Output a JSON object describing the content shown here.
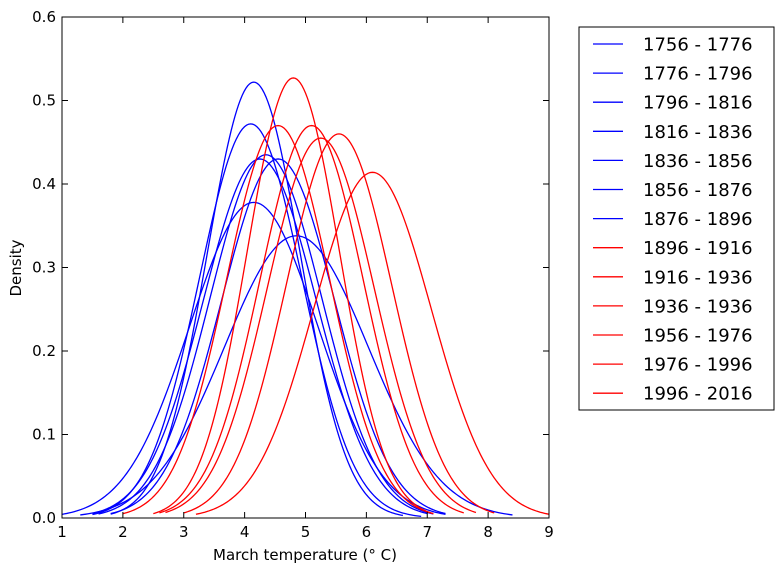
{
  "chart_data": {
    "type": "line",
    "title": "",
    "xlabel": "March temperature (° C)",
    "ylabel": "Density",
    "xlim": [
      1,
      9
    ],
    "ylim": [
      0.0,
      0.6
    ],
    "xticks": [
      "1",
      "2",
      "3",
      "4",
      "5",
      "6",
      "7",
      "8",
      "9"
    ],
    "yticks": [
      "0.0",
      "0.1",
      "0.2",
      "0.3",
      "0.4",
      "0.5",
      "0.6"
    ],
    "grid": false,
    "legend_position": "outside-right",
    "colors": {
      "early": "#0000ff",
      "late": "#ff0000"
    },
    "series": [
      {
        "name": "1756 - 1776",
        "color": "#0000ff",
        "mean": 4.15,
        "peak": 0.522,
        "range": [
          1.8,
          6.6
        ]
      },
      {
        "name": "1776 - 1796",
        "color": "#0000ff",
        "mean": 4.1,
        "peak": 0.472,
        "range": [
          1.5,
          6.9
        ]
      },
      {
        "name": "1796 - 1816",
        "color": "#0000ff",
        "mean": 4.35,
        "peak": 0.435,
        "range": [
          1.6,
          7.1
        ]
      },
      {
        "name": "1816 - 1836",
        "color": "#0000ff",
        "mean": 4.55,
        "peak": 0.43,
        "range": [
          1.8,
          7.3
        ]
      },
      {
        "name": "1836 - 1856",
        "color": "#0000ff",
        "mean": 4.25,
        "peak": 0.43,
        "range": [
          1.5,
          7.0
        ]
      },
      {
        "name": "1856 - 1876",
        "color": "#0000ff",
        "mean": 4.15,
        "peak": 0.378,
        "range": [
          1.0,
          7.3
        ]
      },
      {
        "name": "1876 - 1896",
        "color": "#0000ff",
        "mean": 4.85,
        "peak": 0.338,
        "range": [
          1.3,
          8.4
        ]
      },
      {
        "name": "1896 - 1916",
        "color": "#ff0000",
        "mean": 4.55,
        "peak": 0.47,
        "range": [
          2.0,
          7.1
        ]
      },
      {
        "name": "1916 - 1936",
        "color": "#ff0000",
        "mean": 4.8,
        "peak": 0.527,
        "range": [
          2.5,
          7.1
        ]
      },
      {
        "name": "1936 - 1936",
        "color": "#ff0000",
        "mean": 5.1,
        "peak": 0.47,
        "range": [
          2.6,
          7.6
        ]
      },
      {
        "name": "1956 - 1976",
        "color": "#ff0000",
        "mean": 5.25,
        "peak": 0.455,
        "range": [
          2.7,
          7.8
        ]
      },
      {
        "name": "1976 - 1996",
        "color": "#ff0000",
        "mean": 5.55,
        "peak": 0.46,
        "range": [
          3.0,
          8.1
        ]
      },
      {
        "name": "1996 - 2016",
        "color": "#ff0000",
        "mean": 6.1,
        "peak": 0.414,
        "range": [
          3.2,
          9.0
        ]
      }
    ]
  }
}
